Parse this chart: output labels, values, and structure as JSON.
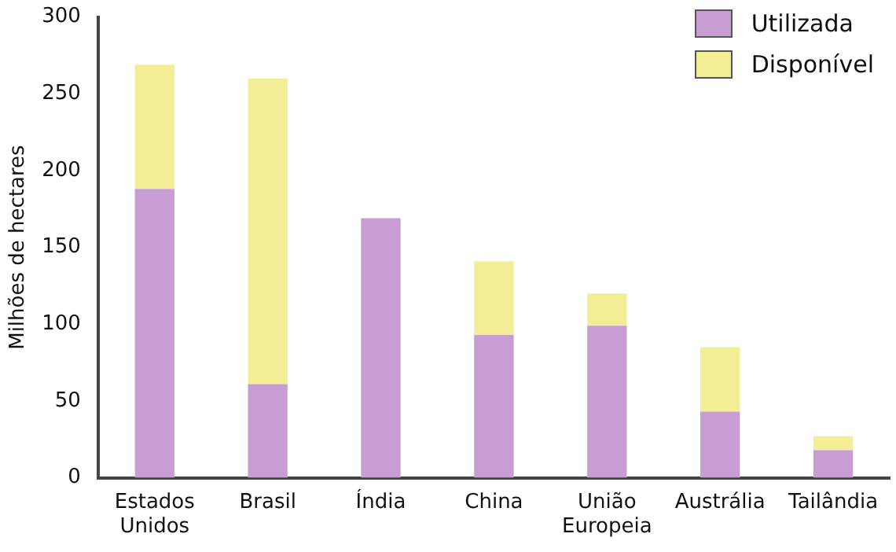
{
  "chart_data": {
    "type": "bar",
    "stacked": true,
    "ylabel": "Milhões de hectares",
    "categories": [
      "Estados Unidos",
      "Brasil",
      "Índia",
      "China",
      "União Europeia",
      "Austrália",
      "Tailândia"
    ],
    "series": [
      {
        "name": "Utilizada",
        "color": "#c89dd4",
        "values": [
          188,
          61,
          169,
          93,
          99,
          43,
          18
        ]
      },
      {
        "name": "Disponível",
        "color": "#f3ee96",
        "values": [
          81,
          199,
          null,
          48,
          21,
          42,
          9
        ]
      }
    ],
    "ylim": [
      0,
      300
    ],
    "yticks": [
      0,
      50,
      100,
      150,
      200,
      250,
      300
    ],
    "grid": false,
    "legend": "top right"
  }
}
